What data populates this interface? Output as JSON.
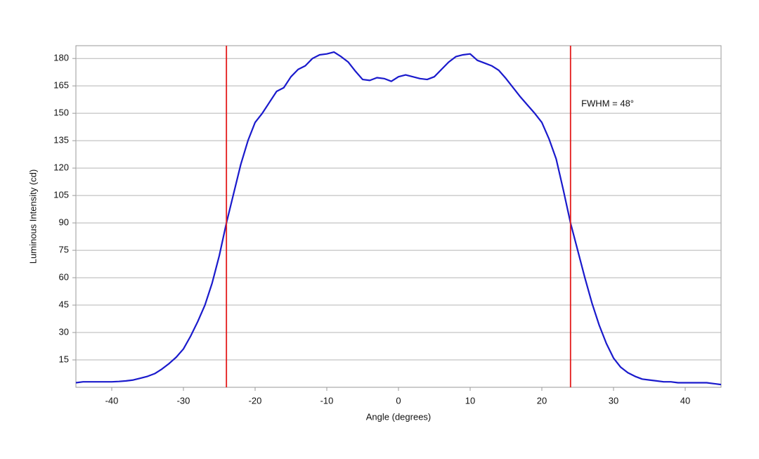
{
  "chart_data": {
    "type": "line",
    "xlabel": "Angle (degrees)",
    "ylabel": "Luminous Intensity (cd)",
    "x": [
      -45,
      -44,
      -43,
      -42,
      -41,
      -40,
      -39,
      -38,
      -37,
      -36,
      -35,
      -34,
      -33,
      -32,
      -31,
      -30,
      -29,
      -28,
      -27,
      -26,
      -25,
      -24,
      -23,
      -22,
      -21,
      -20,
      -19,
      -18,
      -17,
      -16,
      -15,
      -14,
      -13,
      -12,
      -11,
      -10,
      -9,
      -8,
      -7,
      -6,
      -5,
      -4,
      -3,
      -2,
      -1,
      0,
      1,
      2,
      3,
      4,
      5,
      6,
      7,
      8,
      9,
      10,
      11,
      12,
      13,
      14,
      15,
      16,
      17,
      18,
      19,
      20,
      21,
      22,
      23,
      24,
      25,
      26,
      27,
      28,
      29,
      30,
      31,
      32,
      33,
      34,
      35,
      36,
      37,
      38,
      39,
      40,
      41,
      42,
      43,
      44,
      45
    ],
    "series": [
      {
        "name": "Luminous Intensity",
        "color": "#1a1acc",
        "values": [
          2.5,
          3,
          3,
          3,
          3,
          3,
          3.2,
          3.5,
          4,
          5,
          6,
          7.5,
          10,
          13,
          16.5,
          21,
          28,
          36,
          45,
          57,
          72,
          90,
          106,
          122,
          135,
          145,
          150,
          156,
          162,
          164,
          170,
          174,
          176,
          180,
          182,
          182.5,
          183.5,
          181,
          178,
          173,
          168.5,
          168,
          169.5,
          169,
          167.5,
          170,
          171,
          170,
          169,
          168.5,
          170,
          174,
          178,
          181,
          182,
          182.5,
          179,
          177.5,
          176,
          173.5,
          169,
          164,
          159,
          154.5,
          150,
          145,
          136,
          125,
          108,
          90,
          75,
          60,
          46,
          34,
          24,
          16,
          11,
          8,
          6,
          4.5,
          4,
          3.5,
          3,
          3,
          2.5,
          2.5,
          2.5,
          2.5,
          2.5,
          2,
          1.5
        ]
      }
    ],
    "markers": {
      "color": "#e31a1a",
      "x": [
        -24,
        24
      ]
    },
    "annotation": {
      "text": "FWHM = 48°",
      "x": 25.5,
      "y": 155
    },
    "xlim": [
      -45,
      45
    ],
    "ylim": [
      0,
      187
    ],
    "xticks": [
      -40,
      -30,
      -20,
      -10,
      0,
      10,
      20,
      30,
      40
    ],
    "yticks": [
      15,
      30,
      45,
      60,
      75,
      90,
      105,
      120,
      135,
      150,
      165,
      180
    ],
    "grid": true
  }
}
